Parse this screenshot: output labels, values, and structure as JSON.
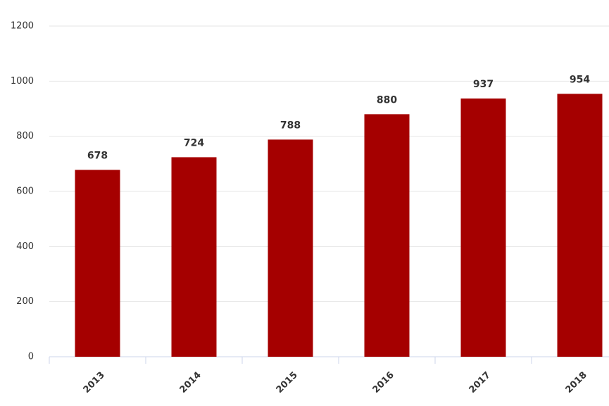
{
  "chart_data": {
    "type": "bar",
    "categories": [
      "2013",
      "2014",
      "2015",
      "2016",
      "2017",
      "2018"
    ],
    "values": [
      678,
      724,
      788,
      880,
      937,
      954
    ],
    "color": "#a50000",
    "ylim": [
      0,
      1200
    ],
    "yticks": [
      0,
      200,
      400,
      600,
      800,
      1000,
      1200
    ],
    "grid": true
  }
}
